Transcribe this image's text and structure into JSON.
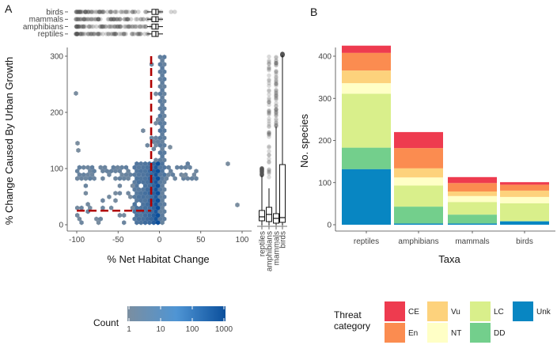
{
  "panel_a": {
    "label": "A",
    "top_box_groups": [
      "birds",
      "mammals",
      "amphibians",
      "reptiles"
    ],
    "side_box_groups": [
      "reptiles",
      "amphibians",
      "mammals",
      "birds"
    ],
    "xlabel": "% Net Habitat Change",
    "ylabel": "% Change Caused By Urban Growth",
    "legend": {
      "title": "Count",
      "ticks": [
        "1",
        "10",
        "100",
        "1000"
      ],
      "color_low": "#7b8ea0",
      "color_high": "#0b4f9c"
    }
  },
  "panel_b": {
    "label": "B",
    "xlabel": "Taxa",
    "ylabel": "No. species",
    "legend": {
      "title_line1": "Threat",
      "title_line2": "category",
      "items": [
        {
          "code": "CE",
          "color": "#ee3b4f"
        },
        {
          "code": "En",
          "color": "#fb8c50"
        },
        {
          "code": "Vu",
          "color": "#fdd27c"
        },
        {
          "code": "NT",
          "color": "#ffffc6"
        },
        {
          "code": "LC",
          "color": "#d9ef8b"
        },
        {
          "code": "DD",
          "color": "#73cf8c"
        },
        {
          "code": "Unk",
          "color": "#0886c2"
        }
      ]
    }
  },
  "chart_data": [
    {
      "type": "heatmap",
      "title": "",
      "xlabel": "% Net Habitat Change",
      "ylabel": "% Change Caused By Urban Growth",
      "xlim": [
        -100,
        100
      ],
      "ylim": [
        0,
        300
      ],
      "xticks": [
        -100,
        -50,
        0,
        50,
        100
      ],
      "yticks": [
        0,
        100,
        200,
        300
      ],
      "reference_lines": [
        {
          "orientation": "vertical",
          "x": -10,
          "y_from": 25,
          "y_to": 300,
          "color": "#b00000",
          "style": "dashed"
        },
        {
          "orientation": "horizontal",
          "y": 25,
          "x_from": -100,
          "x_to": -10,
          "color": "#b00000",
          "style": "dashed"
        }
      ],
      "count_scale": {
        "type": "log",
        "min": 1,
        "max": 1000
      },
      "description_bins": "hexbin density concentrated near x=0 and y between 0 and 100"
    },
    {
      "type": "box",
      "orientation": "horizontal",
      "variable": "% Net Habitat Change",
      "groups": [
        "birds",
        "mammals",
        "amphibians",
        "reptiles"
      ]
    },
    {
      "type": "box",
      "orientation": "vertical",
      "variable": "% Change Caused By Urban Growth",
      "groups": [
        "reptiles",
        "amphibians",
        "mammals",
        "birds"
      ]
    },
    {
      "type": "bar",
      "stacked": true,
      "title": "",
      "xlabel": "Taxa",
      "ylabel": "No. species",
      "categories": [
        "reptiles",
        "amphibians",
        "mammals",
        "birds"
      ],
      "ylim": [
        0,
        440
      ],
      "yticks": [
        0,
        100,
        200,
        300,
        400
      ],
      "series": [
        {
          "name": "Unk",
          "values": [
            132,
            3,
            3,
            8
          ]
        },
        {
          "name": "DD",
          "values": [
            51,
            40,
            21,
            1
          ]
        },
        {
          "name": "LC",
          "values": [
            128,
            50,
            30,
            42
          ]
        },
        {
          "name": "NT",
          "values": [
            25,
            19,
            14,
            15
          ]
        },
        {
          "name": "Vu",
          "values": [
            30,
            22,
            11,
            15
          ]
        },
        {
          "name": "En",
          "values": [
            42,
            48,
            20,
            14
          ]
        },
        {
          "name": "CE",
          "values": [
            17,
            38,
            14,
            6
          ]
        }
      ]
    }
  ]
}
